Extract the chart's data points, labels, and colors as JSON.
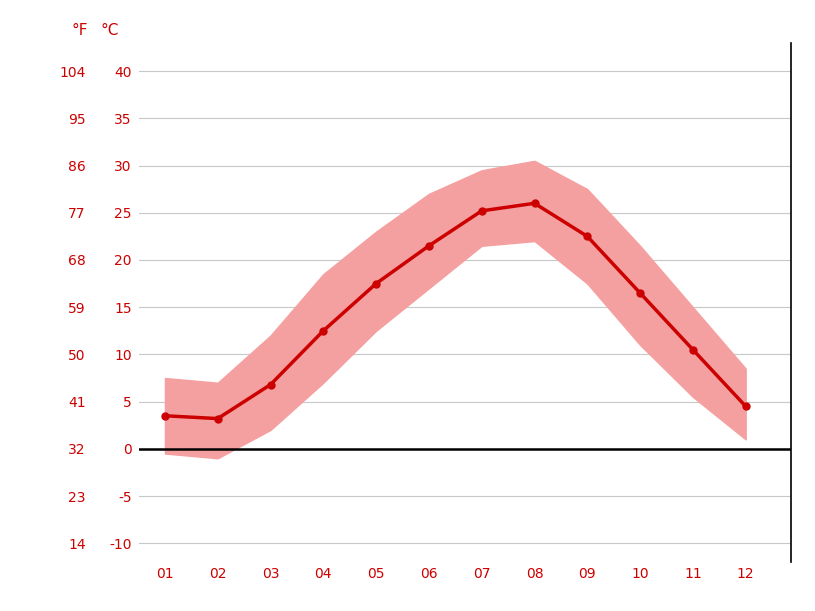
{
  "months": [
    1,
    2,
    3,
    4,
    5,
    6,
    7,
    8,
    9,
    10,
    11,
    12
  ],
  "month_labels": [
    "01",
    "02",
    "03",
    "04",
    "05",
    "06",
    "07",
    "08",
    "09",
    "10",
    "11",
    "12"
  ],
  "mean_temp": [
    3.5,
    3.2,
    6.8,
    12.5,
    17.5,
    21.5,
    25.2,
    26.0,
    22.5,
    16.5,
    10.5,
    4.5
  ],
  "max_temp": [
    7.5,
    7.0,
    12.0,
    18.5,
    23.0,
    27.0,
    29.5,
    30.5,
    27.5,
    21.5,
    15.0,
    8.5
  ],
  "min_temp": [
    -0.5,
    -1.0,
    2.0,
    7.0,
    12.5,
    17.0,
    21.5,
    22.0,
    17.5,
    11.0,
    5.5,
    1.0
  ],
  "y_ticks_c": [
    -10,
    -5,
    0,
    5,
    10,
    15,
    20,
    25,
    30,
    35,
    40
  ],
  "y_ticks_f": [
    14,
    23,
    32,
    41,
    50,
    59,
    68,
    77,
    86,
    95,
    104
  ],
  "ylim": [
    -12,
    43
  ],
  "xlim": [
    0.5,
    12.85
  ],
  "line_color": "#cc0000",
  "band_color": "#f5a0a0",
  "zero_line_color": "#000000",
  "grid_color": "#c8c8c8",
  "axis_label_color": "#cc0000",
  "background_color": "#ffffff",
  "tick_fontsize": 10,
  "header_fontsize": 11
}
